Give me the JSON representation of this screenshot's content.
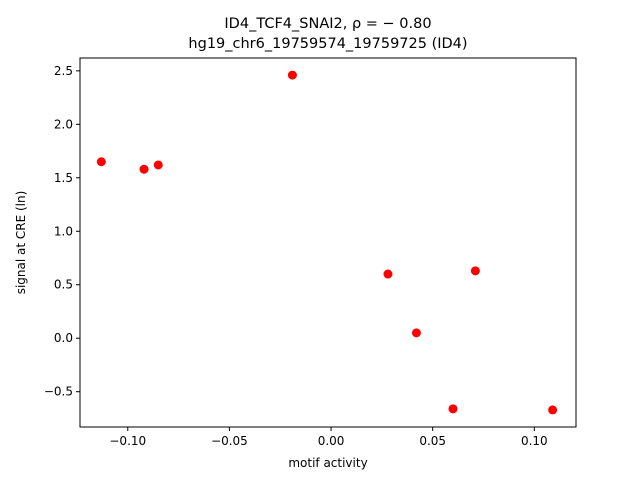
{
  "chart_data": {
    "type": "scatter",
    "title_line1": "ID4_TCF4_SNAI2, ρ = − 0.80",
    "title_line2": "hg19_chr6_19759574_19759725 (ID4)",
    "xlabel": "motif activity",
    "ylabel": "signal at CRE (ln)",
    "xlim": [
      -0.1235,
      0.1205
    ],
    "ylim": [
      -0.83,
      2.62
    ],
    "xticks": [
      -0.1,
      -0.05,
      0.0,
      0.05,
      0.1
    ],
    "xtick_labels": [
      "−0.10",
      "−0.05",
      "0.00",
      "0.05",
      "0.10"
    ],
    "yticks": [
      -0.5,
      0.0,
      0.5,
      1.0,
      1.5,
      2.0,
      2.5
    ],
    "ytick_labels": [
      "−0.5",
      "0.0",
      "0.5",
      "1.0",
      "1.5",
      "2.0",
      "2.5"
    ],
    "grid": false,
    "point_color": "#ff0000",
    "points": [
      {
        "x": -0.113,
        "y": 1.65
      },
      {
        "x": -0.092,
        "y": 1.58
      },
      {
        "x": -0.085,
        "y": 1.62
      },
      {
        "x": -0.019,
        "y": 2.46
      },
      {
        "x": 0.028,
        "y": 0.6
      },
      {
        "x": 0.042,
        "y": 0.05
      },
      {
        "x": 0.06,
        "y": -0.66
      },
      {
        "x": 0.071,
        "y": 0.63
      },
      {
        "x": 0.109,
        "y": -0.67
      }
    ]
  }
}
